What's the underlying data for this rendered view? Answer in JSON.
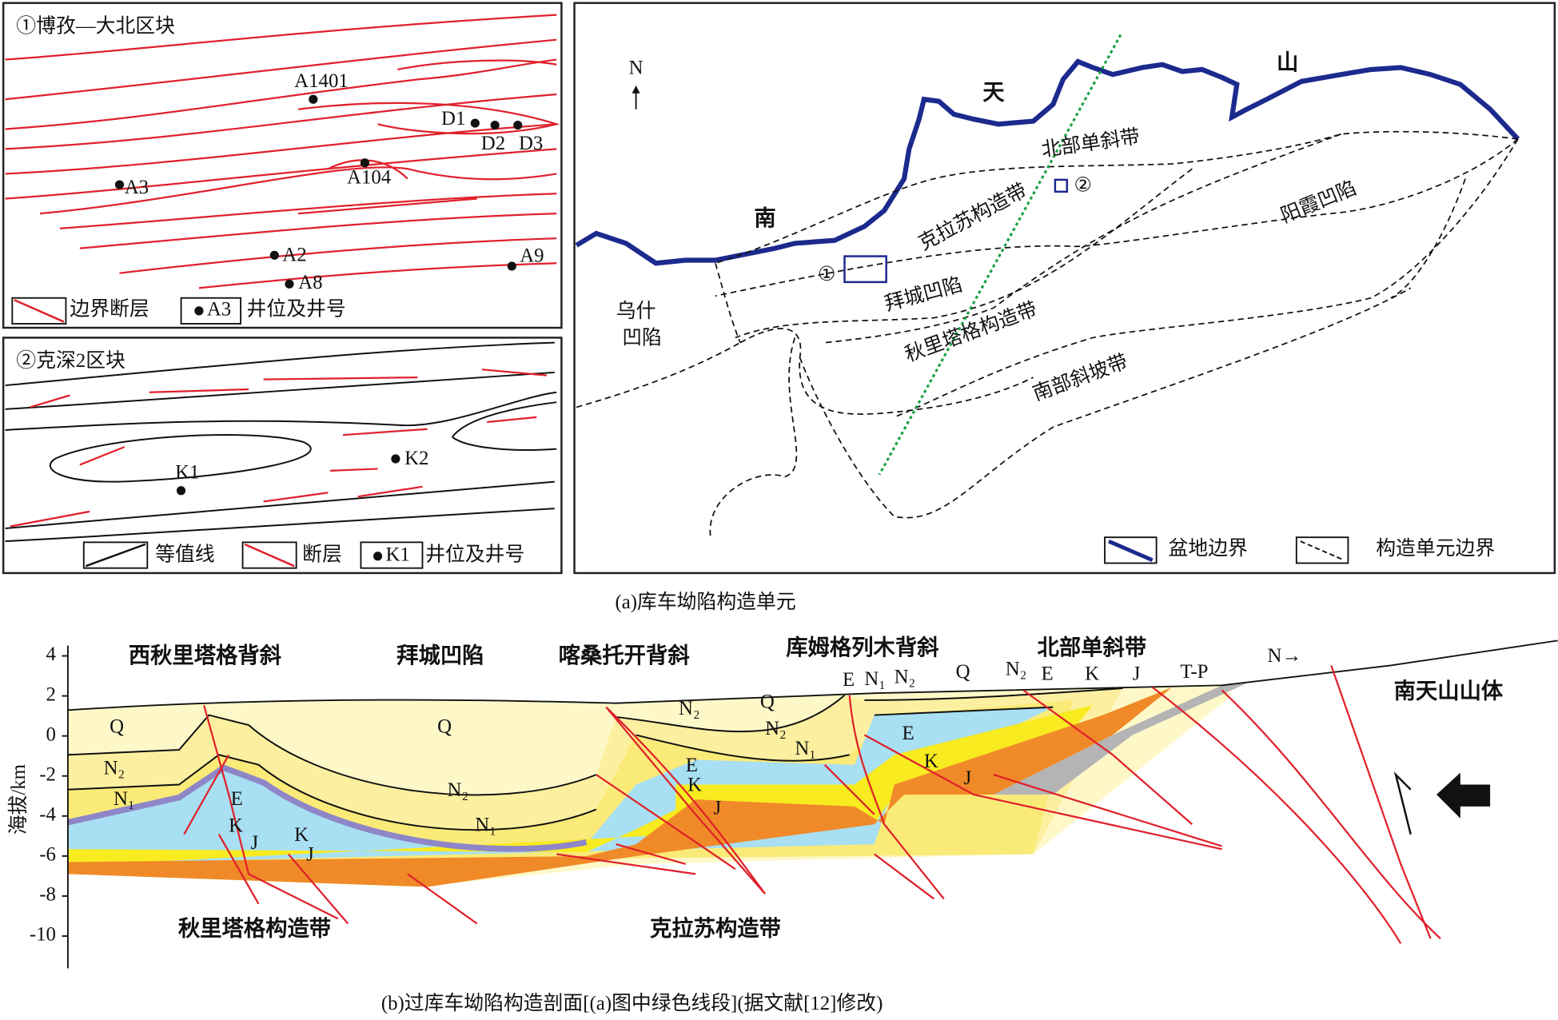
{
  "panel1": {
    "title": "①博孜—大北区块",
    "wells": [
      "A1401",
      "D1",
      "D2",
      "D3",
      "A104",
      "A3",
      "A2",
      "A8",
      "A9"
    ],
    "legend": [
      "边界断层",
      "A3",
      "井位及井号"
    ]
  },
  "panel2": {
    "title": "②克深2区块",
    "wells": [
      "K1",
      "K2"
    ],
    "legend": [
      "等值线",
      "断层",
      "K1",
      "井位及井号"
    ]
  },
  "map": {
    "north": "N",
    "labels": [
      "南",
      "天",
      "山",
      "北部单斜带",
      "克拉苏构造带",
      "阳霞凹陷",
      "乌什",
      "凹陷",
      "拜城凹陷",
      "秋里塔格构造带",
      "南部斜坡带"
    ],
    "markers": [
      "①",
      "②"
    ],
    "legend": [
      "盆地边界",
      "构造单元边界"
    ]
  },
  "caption_a": "(a)库车坳陷构造单元",
  "section": {
    "ylabel": "海拔/km",
    "yticks": [
      4,
      2,
      0,
      -2,
      -4,
      -6,
      -8,
      -10
    ],
    "structures": [
      "西秋里塔格背斜",
      "拜城凹陷",
      "喀桑托开背斜",
      "库姆格列木背斜",
      "北部单斜带"
    ],
    "north": "N→",
    "right_label": "南天山山体",
    "layers": [
      "Q",
      "N₂",
      "N₁",
      "E",
      "K",
      "J",
      "T-P"
    ],
    "bottom_labels": [
      "秋里塔格构造带",
      "克拉苏构造带"
    ]
  },
  "caption_b": "(b)过库车坳陷构造剖面[(a)图中绿色线段](据文献[12]修改)"
}
